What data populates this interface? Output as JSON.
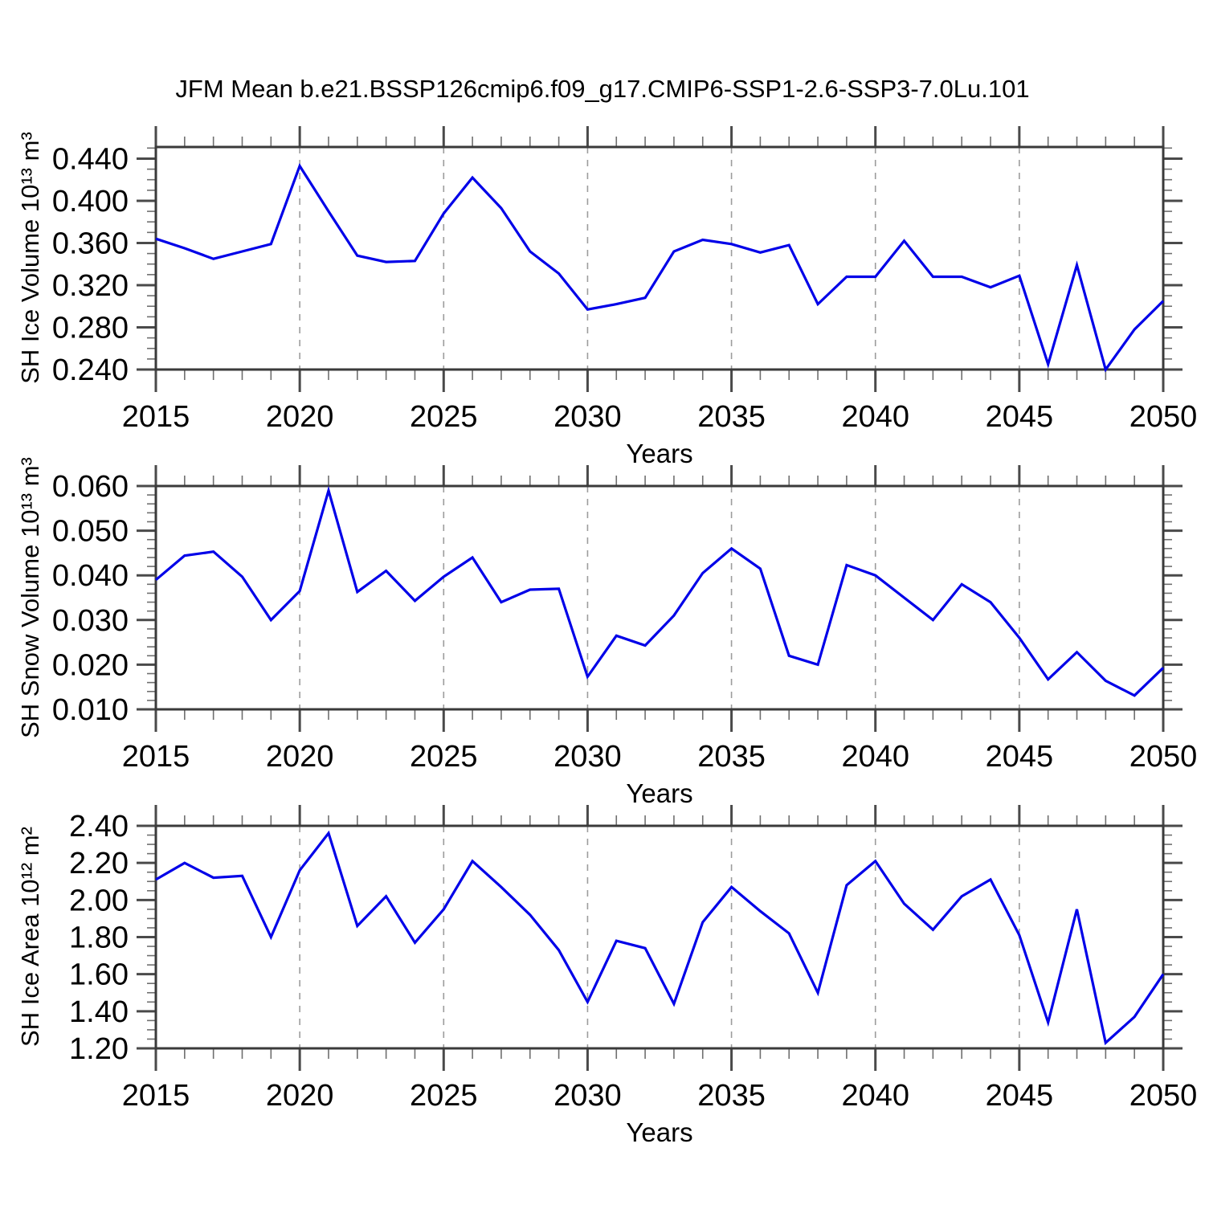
{
  "title": "JFM Mean b.e21.BSSP126cmip6.f09_g17.CMIP6-SSP1-2.6-SSP3-7.0Lu.101",
  "colors": {
    "background": "#ffffff",
    "line": "#0000e8",
    "frame": "#3a3a3a",
    "major_tick": "#4a4a4a",
    "minor_tick": "#6f6f6f",
    "grid": "#9c9c9c",
    "text": "#000000"
  },
  "x_axis": {
    "label": "Years",
    "min": 2015,
    "max": 2050,
    "minor_step": 1,
    "major_ticks": [
      2015,
      2020,
      2025,
      2030,
      2035,
      2040,
      2045,
      2050
    ],
    "major_labels": [
      "2015",
      "2020",
      "2025",
      "2030",
      "2035",
      "2040",
      "2045",
      "2050"
    ],
    "gridline_years": [
      2020,
      2025,
      2030,
      2035,
      2040,
      2045
    ]
  },
  "years": [
    2015,
    2016,
    2017,
    2018,
    2019,
    2020,
    2021,
    2022,
    2023,
    2024,
    2025,
    2026,
    2027,
    2028,
    2029,
    2030,
    2031,
    2032,
    2033,
    2034,
    2035,
    2036,
    2037,
    2038,
    2039,
    2040,
    2041,
    2042,
    2043,
    2044,
    2045,
    2046,
    2047,
    2048,
    2049,
    2050
  ],
  "chart_data": [
    {
      "type": "line",
      "series_name": "SH Ice Volume",
      "ylabel": "SH Ice Volume 10¹³ m³",
      "xlabel": "Years",
      "ylim": [
        0.24,
        0.451
      ],
      "ytick_values": [
        0.24,
        0.28,
        0.32,
        0.36,
        0.4,
        0.44
      ],
      "ytick_labels": [
        "0.240",
        "0.280",
        "0.320",
        "0.360",
        "0.400",
        "0.440"
      ],
      "yminor_step": 0.01,
      "values": [
        0.364,
        0.355,
        0.345,
        0.352,
        0.359,
        0.433,
        0.39,
        0.348,
        0.342,
        0.343,
        0.388,
        0.422,
        0.393,
        0.352,
        0.331,
        0.297,
        0.302,
        0.308,
        0.352,
        0.363,
        0.359,
        0.351,
        0.358,
        0.302,
        0.328,
        0.328,
        0.362,
        0.328,
        0.328,
        0.318,
        0.329,
        0.245,
        0.339,
        0.24,
        0.278,
        0.305
      ]
    },
    {
      "type": "line",
      "series_name": "SH Snow Volume",
      "ylabel": "SH Snow Volume 10¹³ m³",
      "xlabel": "Years",
      "ylim": [
        0.01,
        0.06
      ],
      "ytick_values": [
        0.01,
        0.02,
        0.03,
        0.04,
        0.05,
        0.06
      ],
      "ytick_labels": [
        "0.010",
        "0.020",
        "0.030",
        "0.040",
        "0.050",
        "0.060"
      ],
      "yminor_step": 0.002,
      "values": [
        0.039,
        0.0444,
        0.0453,
        0.0397,
        0.03,
        0.0365,
        0.059,
        0.0363,
        0.041,
        0.0343,
        0.0397,
        0.044,
        0.034,
        0.0368,
        0.037,
        0.0173,
        0.0265,
        0.0243,
        0.031,
        0.0405,
        0.046,
        0.0415,
        0.022,
        0.02,
        0.0423,
        0.04,
        0.035,
        0.03,
        0.038,
        0.034,
        0.026,
        0.0167,
        0.0228,
        0.0164,
        0.0131,
        0.0193
      ]
    },
    {
      "type": "line",
      "series_name": "SH Ice Area",
      "ylabel": "SH Ice Area 10¹² m²",
      "xlabel": "Years",
      "ylim": [
        1.2,
        2.4
      ],
      "ytick_values": [
        1.2,
        1.4,
        1.6,
        1.8,
        2.0,
        2.2,
        2.4
      ],
      "ytick_labels": [
        "1.20",
        "1.40",
        "1.60",
        "1.80",
        "2.00",
        "2.20",
        "2.40"
      ],
      "yminor_step": 0.05,
      "values": [
        2.11,
        2.2,
        2.12,
        2.13,
        1.8,
        2.16,
        2.36,
        1.86,
        2.02,
        1.77,
        1.95,
        2.21,
        2.07,
        1.92,
        1.73,
        1.45,
        1.78,
        1.74,
        1.44,
        1.88,
        2.07,
        1.94,
        1.82,
        1.5,
        2.08,
        2.21,
        1.98,
        1.84,
        2.02,
        2.11,
        1.81,
        1.34,
        1.95,
        1.23,
        1.37,
        1.6
      ]
    }
  ]
}
